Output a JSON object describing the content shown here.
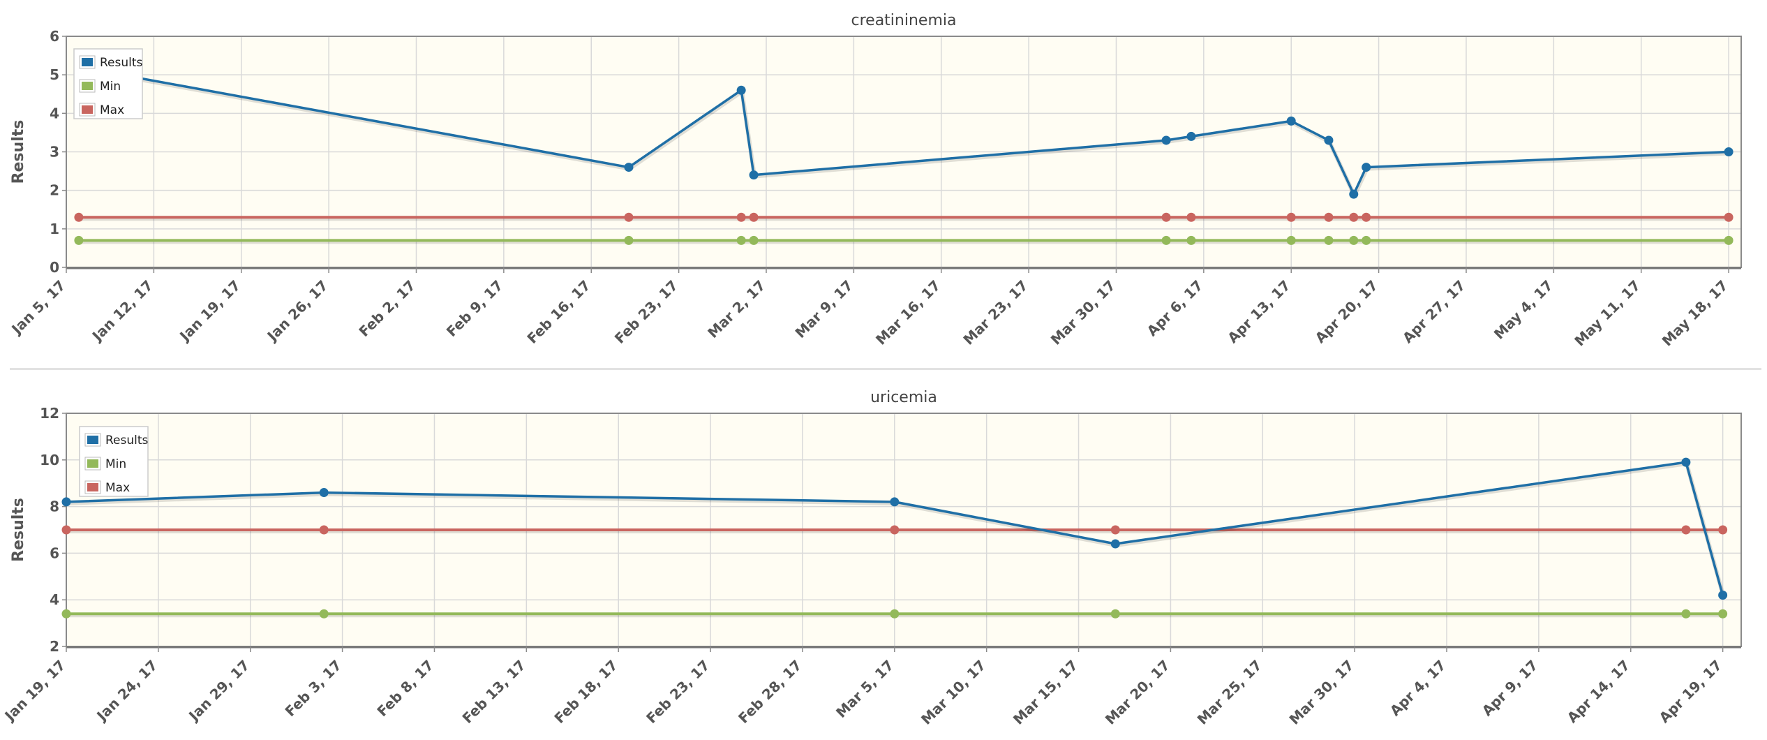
{
  "colors": {
    "results": "#1f6fa6",
    "min": "#93b95a",
    "max": "#c9655f",
    "plot_bg": "#fffdf3",
    "grid": "#d9d9d9",
    "axis": "#8a8a8a"
  },
  "chart_data": [
    {
      "type": "line",
      "title": "creatininemia",
      "ylabel": "Results",
      "xlabel": "",
      "x_axis": "date",
      "xlim": [
        "2017-01-05",
        "2017-05-19"
      ],
      "ylim": [
        0,
        6
      ],
      "yticks": [
        0,
        1,
        2,
        3,
        4,
        5,
        6
      ],
      "xticks": [
        "2017-01-05",
        "2017-01-12",
        "2017-01-19",
        "2017-01-26",
        "2017-02-02",
        "2017-02-09",
        "2017-02-16",
        "2017-02-23",
        "2017-03-02",
        "2017-03-09",
        "2017-03-16",
        "2017-03-23",
        "2017-03-30",
        "2017-04-06",
        "2017-04-13",
        "2017-04-20",
        "2017-04-27",
        "2017-05-04",
        "2017-05-11",
        "2017-05-18"
      ],
      "xtick_labels": [
        "Jan 5, 17",
        "Jan 12, 17",
        "Jan 19, 17",
        "Jan 26, 17",
        "Feb 2, 17",
        "Feb 9, 17",
        "Feb 16, 17",
        "Feb 23, 17",
        "Mar 2, 17",
        "Mar 9, 17",
        "Mar 16, 17",
        "Mar 23, 17",
        "Mar 30, 17",
        "Apr 6, 17",
        "Apr 13, 17",
        "Apr 20, 17",
        "Apr 27, 17",
        "May 4, 17",
        "May 11, 17",
        "May 18, 17"
      ],
      "grid": true,
      "legend_position": "top-left",
      "x": [
        "2017-01-06",
        "2017-02-19",
        "2017-02-28",
        "2017-03-01",
        "2017-04-03",
        "2017-04-05",
        "2017-04-13",
        "2017-04-16",
        "2017-04-18",
        "2017-04-19",
        "2017-05-18"
      ],
      "series": [
        {
          "name": "Results",
          "color": "#1f6fa6",
          "values": [
            5.2,
            2.6,
            4.6,
            2.4,
            3.3,
            3.4,
            3.8,
            3.3,
            1.9,
            2.6,
            3.0
          ]
        },
        {
          "name": "Min",
          "color": "#93b95a",
          "values": [
            0.7,
            0.7,
            0.7,
            0.7,
            0.7,
            0.7,
            0.7,
            0.7,
            0.7,
            0.7,
            0.7
          ]
        },
        {
          "name": "Max",
          "color": "#c9655f",
          "values": [
            1.3,
            1.3,
            1.3,
            1.3,
            1.3,
            1.3,
            1.3,
            1.3,
            1.3,
            1.3,
            1.3
          ]
        }
      ]
    },
    {
      "type": "line",
      "title": "uricemia",
      "ylabel": "Results",
      "xlabel": "",
      "x_axis": "date",
      "xlim": [
        "2017-01-19",
        "2017-04-20"
      ],
      "ylim": [
        2,
        12
      ],
      "yticks": [
        2,
        4,
        6,
        8,
        10,
        12
      ],
      "xticks": [
        "2017-01-19",
        "2017-01-24",
        "2017-01-29",
        "2017-02-03",
        "2017-02-08",
        "2017-02-13",
        "2017-02-18",
        "2017-02-23",
        "2017-02-28",
        "2017-03-05",
        "2017-03-10",
        "2017-03-15",
        "2017-03-20",
        "2017-03-25",
        "2017-03-30",
        "2017-04-04",
        "2017-04-09",
        "2017-04-14",
        "2017-04-19"
      ],
      "xtick_labels": [
        "Jan 19, 17",
        "Jan 24, 17",
        "Jan 29, 17",
        "Feb 3, 17",
        "Feb 8, 17",
        "Feb 13, 17",
        "Feb 18, 17",
        "Feb 23, 17",
        "Feb 28, 17",
        "Mar 5, 17",
        "Mar 10, 17",
        "Mar 15, 17",
        "Mar 20, 17",
        "Mar 25, 17",
        "Mar 30, 17",
        "Apr 4, 17",
        "Apr 9, 17",
        "Apr 14, 17",
        "Apr 19, 17"
      ],
      "grid": true,
      "legend_position": "top-left",
      "x": [
        "2017-01-19",
        "2017-02-02",
        "2017-03-05",
        "2017-03-17",
        "2017-04-17",
        "2017-04-19"
      ],
      "series": [
        {
          "name": "Results",
          "color": "#1f6fa6",
          "values": [
            8.2,
            8.6,
            8.2,
            6.4,
            9.9,
            4.2
          ]
        },
        {
          "name": "Min",
          "color": "#93b95a",
          "values": [
            3.4,
            3.4,
            3.4,
            3.4,
            3.4,
            3.4
          ]
        },
        {
          "name": "Max",
          "color": "#c9655f",
          "values": [
            7.0,
            7.0,
            7.0,
            7.0,
            7.0,
            7.0
          ]
        }
      ]
    }
  ]
}
